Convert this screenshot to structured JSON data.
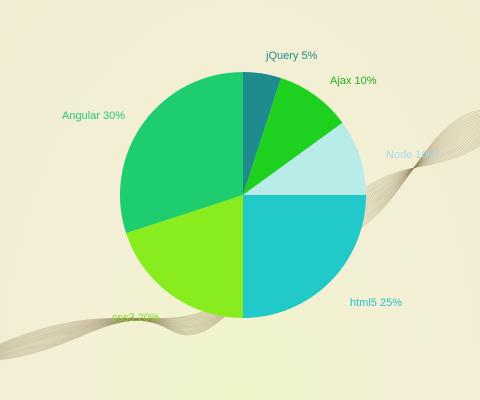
{
  "chart_data": {
    "type": "pie",
    "slices": [
      {
        "label": "jQuery 5%",
        "name": "jQuery",
        "value": 5,
        "color": "#1e8c8c",
        "label_color": "#1e8c8c"
      },
      {
        "label": "Ajax 10%",
        "name": "Ajax",
        "value": 10,
        "color": "#1ed11e",
        "label_color": "#1fb01f"
      },
      {
        "label": "Node 10%",
        "name": "Node",
        "value": 10,
        "color": "#b8ece8",
        "label_color": "#a8dce6"
      },
      {
        "label": "html5 25%",
        "name": "html5",
        "value": 25,
        "color": "#22c9c9",
        "label_color": "#22c0cc"
      },
      {
        "label": "css3 20%",
        "name": "css3",
        "value": 20,
        "color": "#88ec1e",
        "label_color": "#7cdc22"
      },
      {
        "label": "Angular 30%",
        "name": "Angular",
        "value": 30,
        "color": "#1ecd6e",
        "label_color": "#22c878"
      }
    ],
    "start_angle_deg": 0,
    "direction": "clockwise",
    "legend": "none"
  },
  "colors": {
    "background": "#f1edd2",
    "wave": "#8a7550"
  }
}
